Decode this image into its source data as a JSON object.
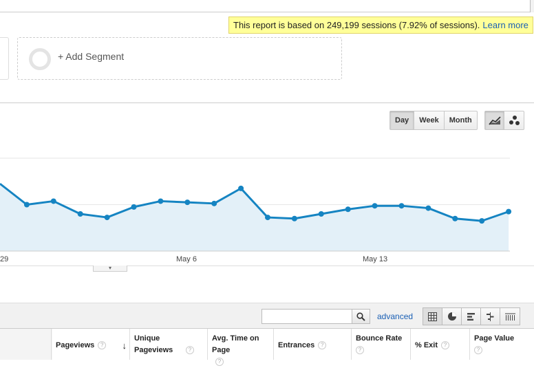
{
  "sampling": {
    "text": "This report is based on 249,199 sessions (7.92% of sessions).",
    "link": "Learn more"
  },
  "segments": {
    "add_label": "+ Add Segment"
  },
  "period_buttons": [
    {
      "label": "Day",
      "active": true
    },
    {
      "label": "Week",
      "active": false
    },
    {
      "label": "Month",
      "active": false
    }
  ],
  "chart_data": {
    "type": "area",
    "x_labels": [
      "29",
      "May 6",
      "May 13"
    ],
    "series": [
      {
        "values": [
          58,
          40,
          43,
          32,
          29,
          38,
          43,
          42,
          41,
          54,
          29,
          28,
          32,
          36,
          39,
          39,
          37,
          28,
          26,
          34
        ]
      }
    ],
    "ylim": [
      0,
      80
    ],
    "grid": true,
    "colors": {
      "line": "#1584c2",
      "fill": "#e3f0f8",
      "grid": "#e6e6e6"
    }
  },
  "table_tools": {
    "search_value": "",
    "advanced_label": "advanced"
  },
  "columns": [
    {
      "label": "Pageviews",
      "help": "?",
      "sorted": "↓"
    },
    {
      "label": "Unique Pageviews",
      "help": "?"
    },
    {
      "label": "Avg. Time on Page",
      "help": "?"
    },
    {
      "label": "Entrances",
      "help": "?"
    },
    {
      "label": "Bounce Rate",
      "help": "?"
    },
    {
      "label": "% Exit",
      "help": "?"
    },
    {
      "label": "Page Value",
      "help": "?"
    }
  ]
}
